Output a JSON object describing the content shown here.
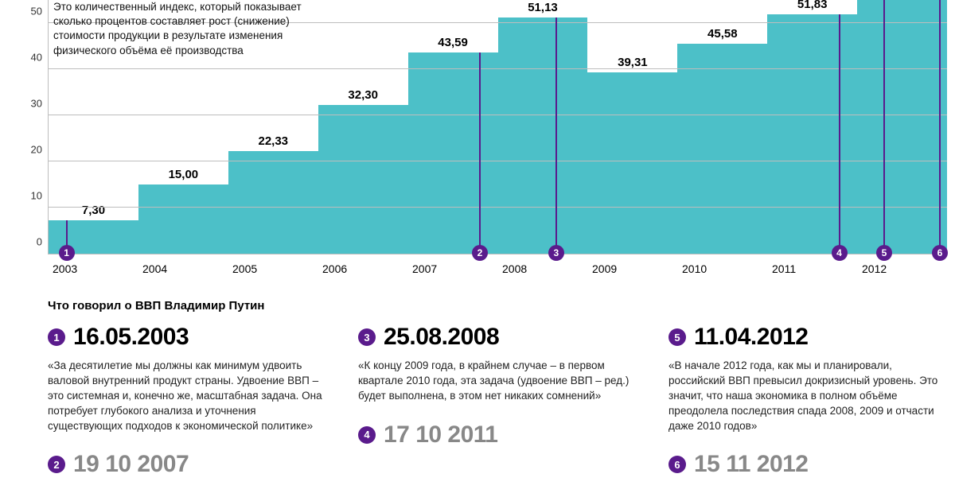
{
  "colors": {
    "background": "#ffffff",
    "text": "#000000",
    "bar_fill": "#4cc0c8",
    "marker": "#5a1b8c",
    "grid": "#bdbdbd",
    "muted_text": "#888888"
  },
  "chart": {
    "type": "step-bar",
    "ylim": [
      0,
      55
    ],
    "yticks": [
      0,
      10,
      20,
      30,
      40,
      50
    ],
    "ytick_labels": [
      "0",
      "10",
      "20",
      "30",
      "40",
      "50"
    ],
    "bar_label_fontsize": 15,
    "bar_label_fontweight": 700,
    "years": [
      "2003",
      "2004",
      "2005",
      "2006",
      "2007",
      "2008",
      "2009",
      "2010",
      "2011",
      "2012"
    ],
    "values": [
      7.3,
      15.0,
      22.33,
      32.3,
      43.59,
      51.13,
      39.31,
      45.58,
      51.83,
      57.5
    ],
    "value_labels": [
      "7,30",
      "15,00",
      "22,33",
      "32,30",
      "43,59",
      "51,13",
      "39,31",
      "45,58",
      "51,83",
      ""
    ],
    "note": "Это количественный индекс, который показывает сколько процентов составляет рост (снижение) стоимости продукции в результате изменения физического объёма её производства",
    "markers": [
      {
        "id": "1",
        "year_fraction": 2003.2,
        "stem_to_value": 7.3
      },
      {
        "id": "2",
        "year_fraction": 2007.8,
        "stem_to_value": 43.59
      },
      {
        "id": "3",
        "year_fraction": 2008.65,
        "stem_to_value": 51.13
      },
      {
        "id": "4",
        "year_fraction": 2011.8,
        "stem_to_value": 51.83
      },
      {
        "id": "5",
        "year_fraction": 2012.3,
        "stem_to_value": 57.5
      },
      {
        "id": "6",
        "year_fraction": 2012.92,
        "stem_to_value": 57.5
      }
    ]
  },
  "quotes_section_title": "Что говорил о ВВП Владимир Путин",
  "quotes": {
    "col1_top": {
      "num": "1",
      "date": "16.05.2003",
      "body": "«За десятилетие мы должны как минимум удвоить валовой внутренний продукт страны. Удвоение ВВП – это системная и, конечно же, масштабная задача. Она потребует глубокого анализа и уточнения существующих подходов к экономической политике»"
    },
    "col1_bottom": {
      "num": "2",
      "date": "19 10 2007"
    },
    "col2_top": {
      "num": "3",
      "date": "25.08.2008",
      "body": "«К концу 2009 года, в крайнем случае – в первом квартале 2010 года, эта задача (удвоение ВВП – ред.) будет выполнена, в этом нет никаких сомнений»"
    },
    "col2_bottom": {
      "num": "4",
      "date": "17 10 2011"
    },
    "col3_top": {
      "num": "5",
      "date": "11.04.2012",
      "body": "«В начале 2012 года, как мы и планировали, российский ВВП превысил докризисный уровень. Это значит, что наша экономика в полном объёме преодолела последствия спада 2008, 2009 и отчасти даже 2010 годов»"
    },
    "col3_bottom": {
      "num": "6",
      "date": "15 11 2012"
    }
  }
}
